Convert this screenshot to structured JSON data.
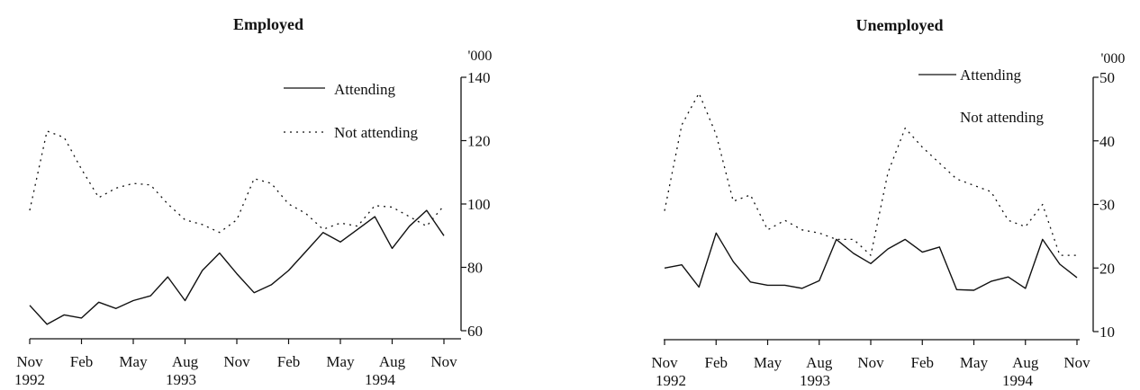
{
  "chart_data": [
    {
      "type": "line",
      "title": "Employed",
      "y_unit": "'000",
      "ylim": [
        60,
        140
      ],
      "yticks": [
        60,
        80,
        100,
        120,
        140
      ],
      "x_tick_labels": [
        "Nov",
        "Feb",
        "May",
        "Aug",
        "Nov",
        "Feb",
        "May",
        "Aug",
        "Nov"
      ],
      "x_year_labels": [
        "1992",
        "1993",
        "1994"
      ],
      "grid": false,
      "legend_placement": "top-right",
      "series": [
        {
          "name": "Attending",
          "style": "solid",
          "values": [
            68,
            62,
            65,
            64,
            69,
            67,
            69.5,
            71,
            77,
            69.5,
            79,
            84.5,
            78,
            72,
            74.5,
            79,
            85,
            91,
            88,
            92,
            96,
            86,
            93,
            98,
            90
          ]
        },
        {
          "name": "Not attending",
          "style": "dotted",
          "values": [
            98,
            123,
            121,
            111,
            102,
            105,
            106.5,
            106,
            100,
            95,
            93.5,
            91,
            95,
            108,
            106.5,
            100,
            97,
            92,
            94,
            93,
            99.5,
            99,
            96,
            93,
            99.5
          ]
        }
      ]
    },
    {
      "type": "line",
      "title": "Unemployed",
      "y_unit": "'000",
      "ylim": [
        10,
        50
      ],
      "yticks": [
        10,
        20,
        30,
        40,
        50
      ],
      "x_tick_labels": [
        "Nov",
        "Feb",
        "May",
        "Aug",
        "Nov",
        "Feb",
        "May",
        "Aug",
        "Nov"
      ],
      "x_year_labels": [
        "1992",
        "1993",
        "1994"
      ],
      "grid": false,
      "legend_placement": "top-right",
      "series": [
        {
          "name": "Attending",
          "style": "solid",
          "values": [
            20,
            20.5,
            17,
            25.5,
            21,
            17.8,
            17.3,
            17.3,
            16.8,
            18,
            24.5,
            22.3,
            20.7,
            23,
            24.5,
            22.5,
            23.3,
            16.6,
            16.5,
            17.9,
            18.6,
            16.8,
            24.5,
            20.6,
            18.5
          ]
        },
        {
          "name": "Not attending",
          "style": "dotted",
          "values": [
            29,
            42.5,
            47.5,
            41,
            30.5,
            31.5,
            26,
            27.5,
            26,
            25.5,
            24.5,
            24.5,
            22,
            35,
            42,
            39,
            36.5,
            34,
            33,
            32,
            27.5,
            26.5,
            30,
            22,
            22
          ]
        }
      ]
    }
  ]
}
